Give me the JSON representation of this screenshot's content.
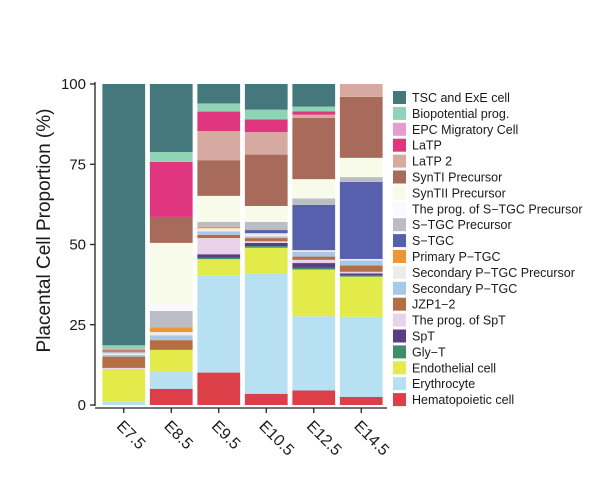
{
  "chart_data": {
    "type": "bar",
    "stacked": true,
    "title": "",
    "xlabel": "",
    "ylabel": "Placental Cell Proportion (%)",
    "ylim": [
      0,
      100
    ],
    "yticks": [
      0,
      25,
      50,
      75,
      100
    ],
    "categories": [
      "E7.5",
      "E8.5",
      "E9.5",
      "E10.5",
      "E12.5",
      "E14.5"
    ],
    "series": [
      {
        "name": "Hematopoietic cell",
        "color": "#dc3f48",
        "values": [
          0,
          5,
          10,
          3.5,
          4.5,
          2.5
        ]
      },
      {
        "name": "Erythrocyte",
        "color": "#b7e0f3",
        "values": [
          1,
          5.5,
          30,
          37.5,
          23,
          25
        ]
      },
      {
        "name": "Endothelial cell",
        "color": "#e2eb4a",
        "values": [
          10,
          6.5,
          5,
          8,
          14.5,
          12.5
        ]
      },
      {
        "name": "Gly−T",
        "color": "#3e8e6a",
        "values": [
          0,
          0,
          0.5,
          0.5,
          0.5,
          0.5
        ]
      },
      {
        "name": "SpT",
        "color": "#5b3d86",
        "values": [
          0,
          0,
          1,
          1,
          1.5,
          0.5
        ]
      },
      {
        "name": "The prog. of SpT",
        "color": "#e9d3ea",
        "values": [
          0.5,
          0,
          5,
          0.5,
          1,
          0.5
        ]
      },
      {
        "name": "JZP1−2",
        "color": "#b46e45",
        "values": [
          3.5,
          3,
          1,
          1,
          1,
          2
        ]
      },
      {
        "name": "Secondary P−TGC",
        "color": "#a7c8e6",
        "values": [
          0.5,
          1.5,
          1,
          0.5,
          1.5,
          1.5
        ]
      },
      {
        "name": "Secondary P−TGC Precursor",
        "color": "#ececec",
        "values": [
          0.5,
          1,
          1,
          1,
          0.5,
          0.5
        ]
      },
      {
        "name": "Primary P−TGC",
        "color": "#ee9535",
        "values": [
          0,
          1.5,
          0.5,
          0,
          0,
          0
        ]
      },
      {
        "name": "S−TGC",
        "color": "#5660ad",
        "values": [
          0,
          0,
          0,
          1,
          14,
          24
        ]
      },
      {
        "name": "S−TGC Precursor",
        "color": "#babdc6",
        "values": [
          0.5,
          5,
          1.5,
          2.5,
          2,
          1.5
        ]
      },
      {
        "name": "The prog. of S−TGC Precursor",
        "color": "#fdf8fb",
        "values": [
          0,
          2,
          0,
          0,
          0,
          0
        ]
      },
      {
        "name": "SynTII Precursor",
        "color": "#f8faea",
        "values": [
          0,
          19,
          8,
          5,
          6,
          6
        ]
      },
      {
        "name": "SynTI Precursor",
        "color": "#a86a5a",
        "values": [
          0.5,
          8,
          11,
          16,
          19,
          19
        ]
      },
      {
        "name": "LaTP 2",
        "color": "#d6aaa0",
        "values": [
          0.5,
          0,
          9,
          7,
          1,
          4
        ]
      },
      {
        "name": "LaTP",
        "color": "#e0357f",
        "values": [
          0,
          17,
          6,
          4,
          1,
          0
        ]
      },
      {
        "name": "EPC Migratory Cell",
        "color": "#e79bd0",
        "values": [
          0,
          0,
          0,
          0,
          0,
          0
        ]
      },
      {
        "name": "Biopotential prog.",
        "color": "#8fd4b5",
        "values": [
          1,
          3,
          2.5,
          3,
          1.5,
          0
        ]
      },
      {
        "name": "TSC and ExE cell",
        "color": "#44787d",
        "values": [
          81,
          21,
          6,
          8,
          7,
          0
        ]
      }
    ]
  }
}
